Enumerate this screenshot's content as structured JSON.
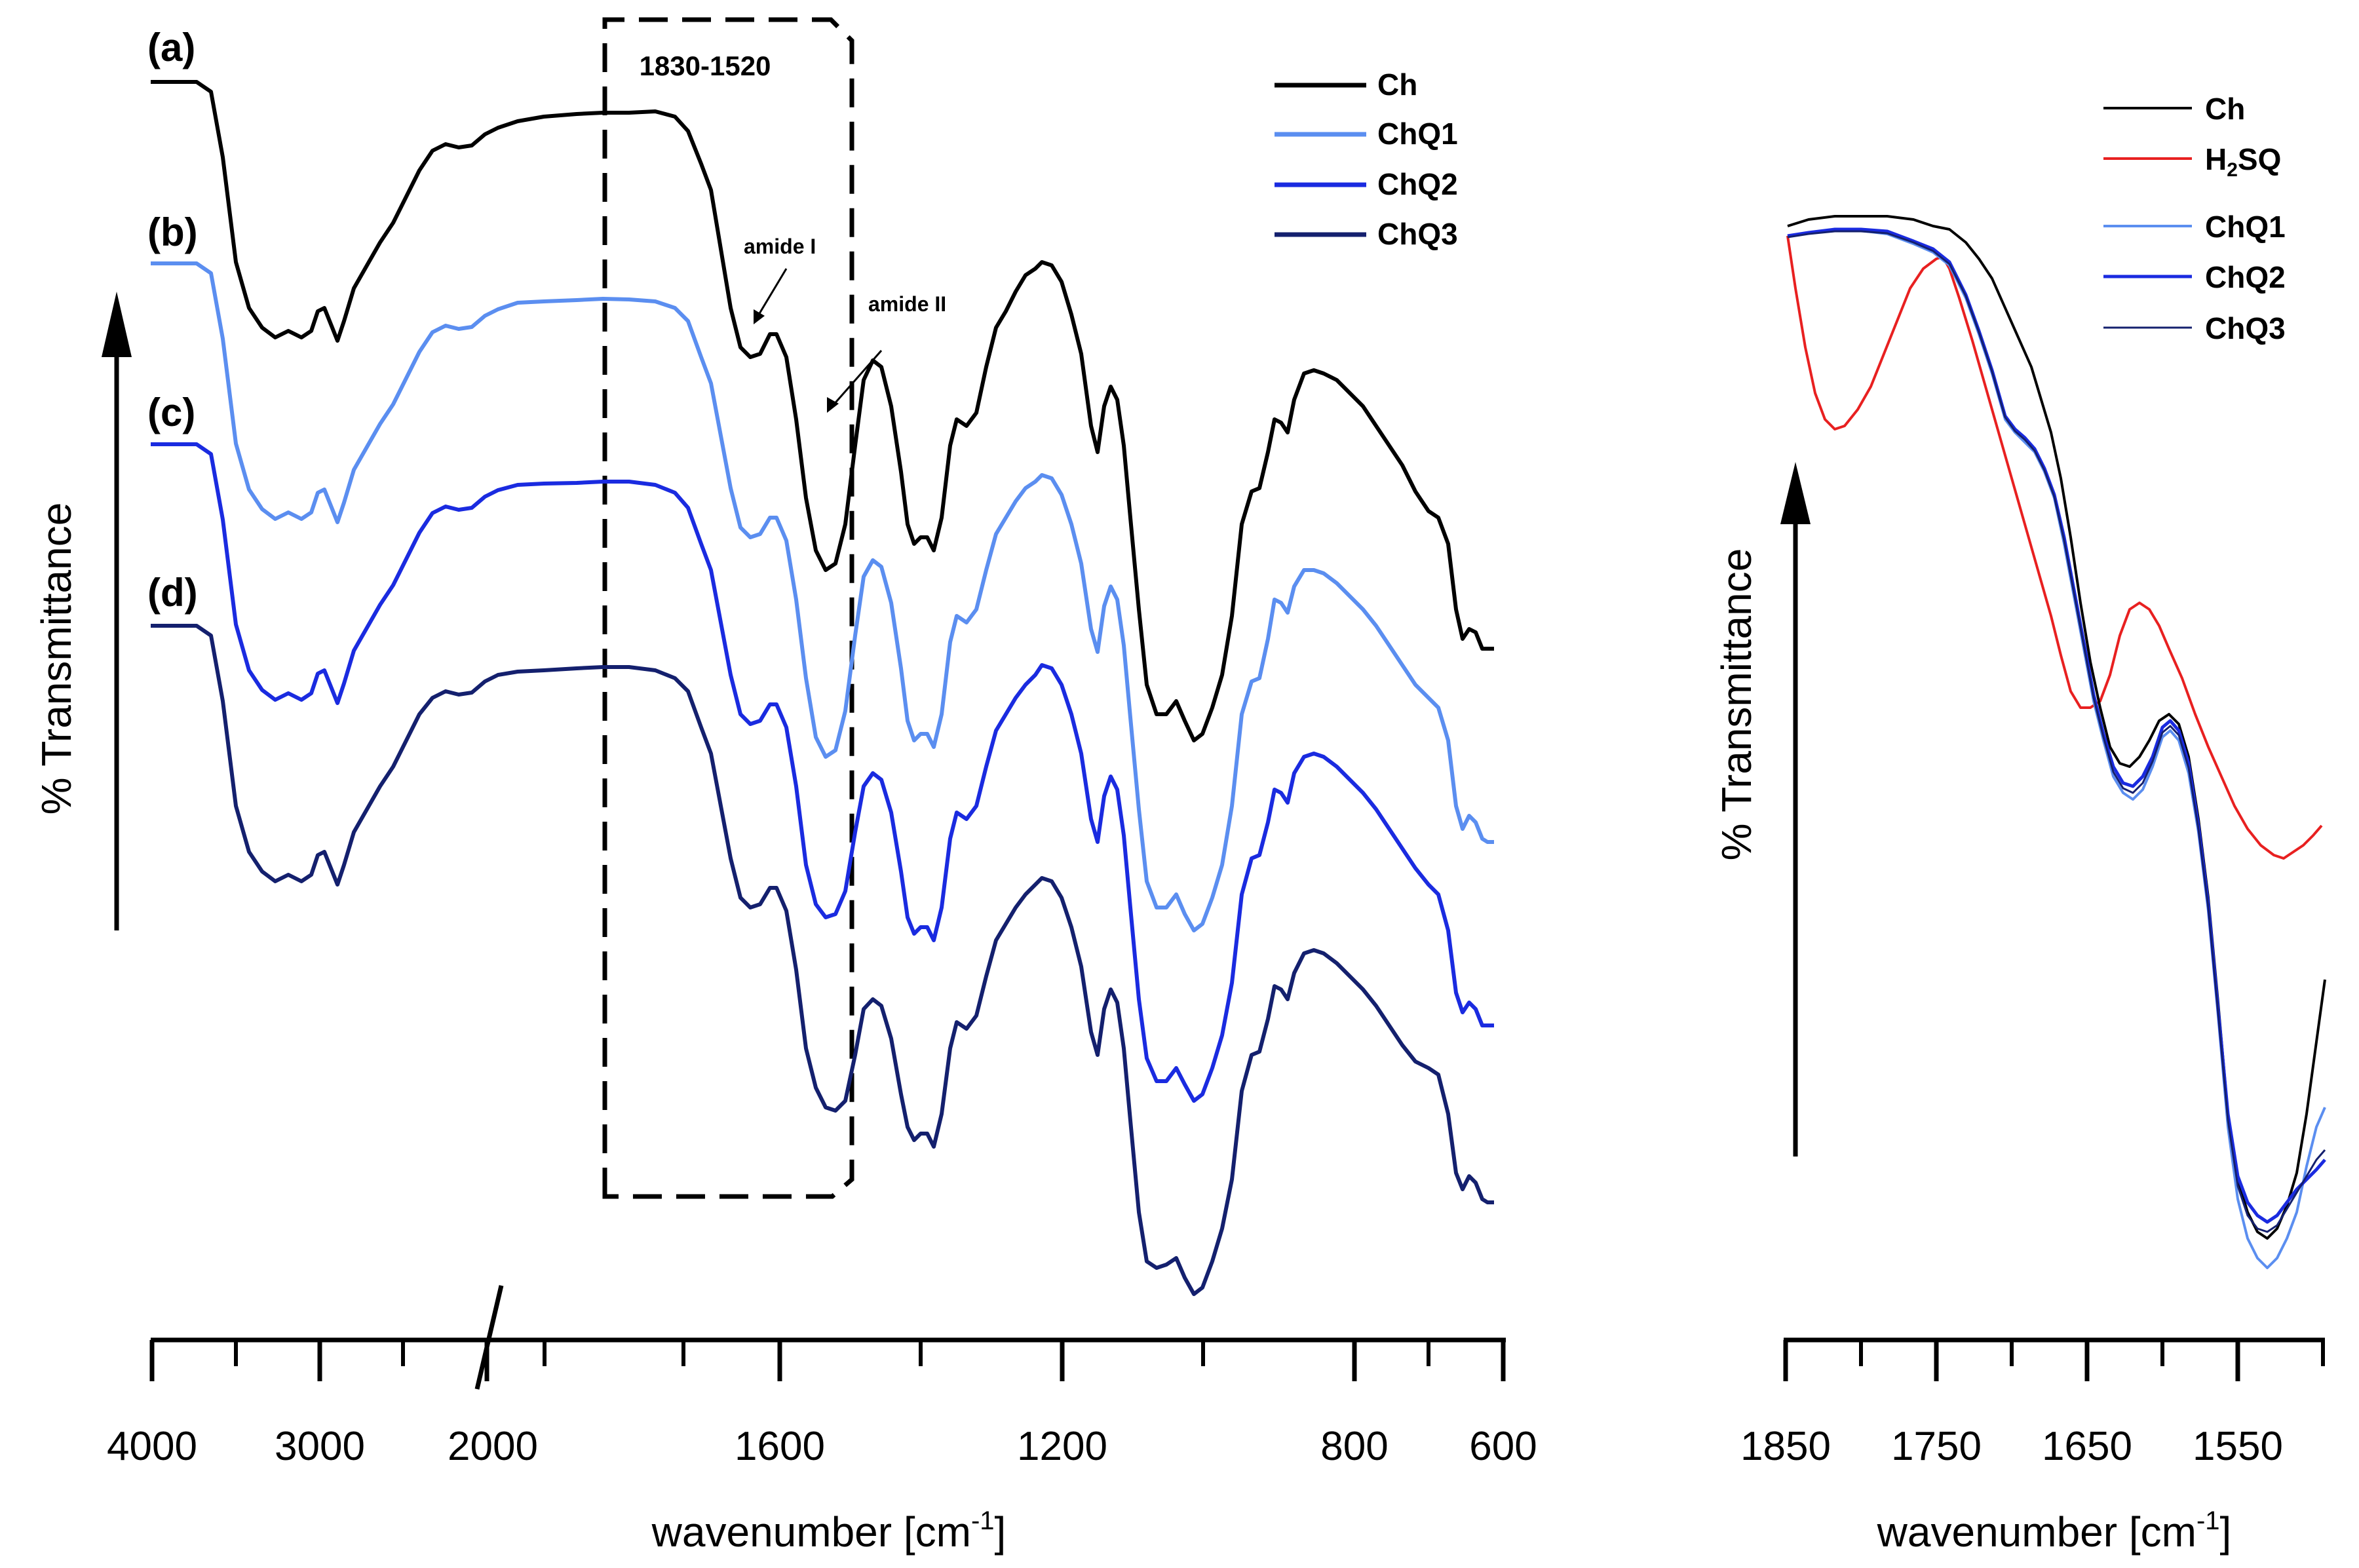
{
  "chart_data": [
    {
      "type": "line",
      "panel": "left",
      "xlabel": "wavenumber [cm",
      "xlabel_sup": "-1",
      "xlabel_end": "]",
      "ylabel": "% Transmittance",
      "x_tick_labels": [
        "4000",
        "3000",
        "2000",
        "1600",
        "1200",
        "800",
        "600"
      ],
      "x_axis_break": true,
      "box_label": "1830-1520",
      "annotations": [
        "amide I",
        "amide II"
      ],
      "curve_labels": [
        "(a)",
        "(b)",
        "(c)",
        "(d)"
      ],
      "series": [
        {
          "name": "Ch",
          "color": "#000000"
        },
        {
          "name": "ChQ1",
          "color": "#5b8ef0"
        },
        {
          "name": "ChQ2",
          "color": "#1a2be0"
        },
        {
          "name": "ChQ3",
          "color": "#14206e"
        }
      ]
    },
    {
      "type": "line",
      "panel": "right",
      "xlabel": "wavenumber [cm",
      "xlabel_sup": "-1",
      "xlabel_end": "]",
      "ylabel": "% Transmittance",
      "x_tick_labels": [
        "1850",
        "1750",
        "1650",
        "1550"
      ],
      "series": [
        {
          "name": "Ch",
          "color": "#000000"
        },
        {
          "name": "H2SQ",
          "label_main": "H",
          "label_sub": "2",
          "label_end": "SQ",
          "color": "#e82020"
        },
        {
          "name": "ChQ1",
          "color": "#5b8ef0"
        },
        {
          "name": "ChQ2",
          "color": "#1a2be0"
        },
        {
          "name": "ChQ3",
          "color": "#14206e"
        }
      ]
    }
  ]
}
